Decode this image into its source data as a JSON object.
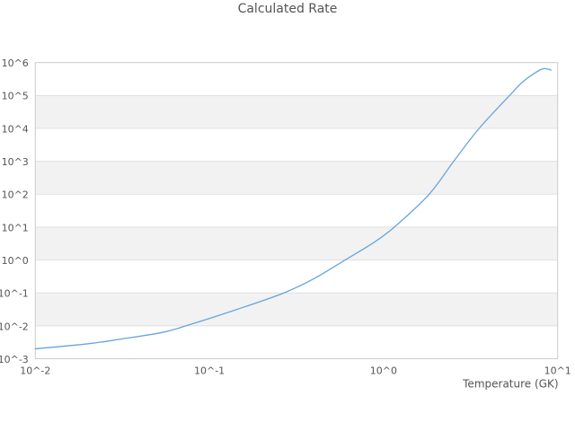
{
  "title": "Calculated Rate",
  "colors": {
    "line": "#67a4de",
    "band": "#f2f2f2",
    "grid": "#e0e0e0",
    "border": "#cccccc",
    "text": "#555555",
    "title_text": "#545454"
  },
  "chart_data": {
    "type": "line",
    "title": "Calculated Rate",
    "xlabel": "Temperature (GK)",
    "ylabel": "",
    "x_scale": "log",
    "y_scale": "log",
    "xlim": [
      0.01,
      10
    ],
    "ylim": [
      0.001,
      1000000
    ],
    "x_ticks": [
      {
        "label": "10^-2",
        "value": 0.01
      },
      {
        "label": "10^-1",
        "value": 0.1
      },
      {
        "label": "10^0",
        "value": 1
      },
      {
        "label": "10^1",
        "value": 10
      }
    ],
    "y_ticks": [
      {
        "label": "10^-3",
        "value": 0.001
      },
      {
        "label": "10^-2",
        "value": 0.01
      },
      {
        "label": "10^-1",
        "value": 0.1
      },
      {
        "label": "10^0",
        "value": 1
      },
      {
        "label": "10^1",
        "value": 10
      },
      {
        "label": "10^2",
        "value": 100
      },
      {
        "label": "10^3",
        "value": 1000
      },
      {
        "label": "10^4",
        "value": 10000
      },
      {
        "label": "10^5",
        "value": 100000
      },
      {
        "label": "10^6",
        "value": 1000000
      }
    ],
    "grid": "horizontal-lines-with-alternating-bands",
    "legend": false,
    "series": [
      {
        "name": "calculated-rate",
        "points": [
          [
            0.01,
            0.002
          ],
          [
            0.0204,
            0.00288
          ],
          [
            0.0331,
            0.00417
          ],
          [
            0.0537,
            0.00631
          ],
          [
            0.0733,
            0.01
          ],
          [
            0.1462,
            0.0324
          ],
          [
            0.2679,
            0.1
          ],
          [
            0.4009,
            0.275
          ],
          [
            0.6012,
            1.0
          ],
          [
            0.869,
            3.27
          ],
          [
            1.153,
            10.0
          ],
          [
            1.828,
            100
          ],
          [
            2.529,
            1000
          ],
          [
            3.54,
            10000
          ],
          [
            5.297,
            100000
          ],
          [
            6.383,
            275000
          ],
          [
            8.017,
            617000
          ],
          [
            8.81,
            631000
          ],
          [
            9.162,
            589000
          ]
        ]
      }
    ]
  }
}
